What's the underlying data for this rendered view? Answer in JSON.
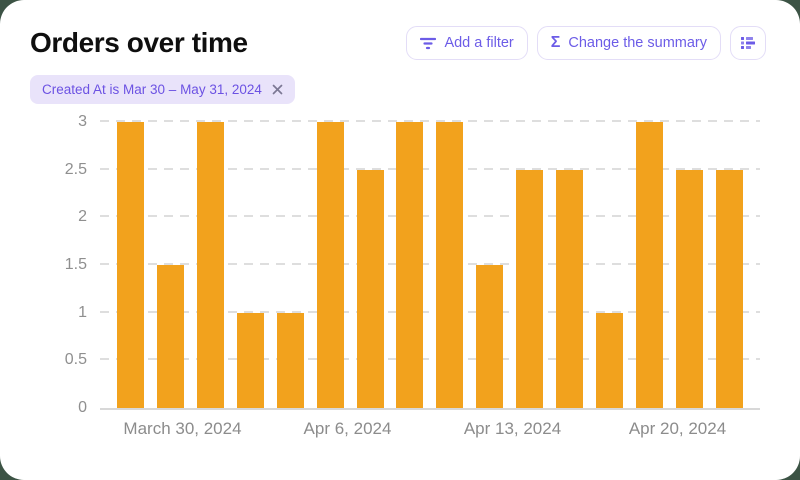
{
  "header": {
    "title": "Orders over time",
    "toolbar": {
      "add_filter_label": "Add a filter",
      "change_summary_label": "Change the summary",
      "sigma_glyph": "Σ",
      "icons": [
        "filter-lines-icon",
        "sigma-icon",
        "list-bars-icon"
      ]
    }
  },
  "filter_chip": {
    "label": "Created At is Mar 30 – May 31, 2024",
    "close_icon": "close-icon"
  },
  "colors": {
    "bar": "#F2A21D",
    "accent_purple": "#6C5CE7",
    "chip_bg": "#E9E3FA",
    "chip_text": "#6C52E3",
    "page_bg": "#3C5345",
    "grid": "#DEDEDE",
    "axis_text": "#8C8C8C"
  },
  "chart_data": {
    "type": "bar",
    "title": "Orders over time",
    "values": [
      3,
      1.5,
      3,
      1,
      1,
      3,
      2.5,
      3,
      3,
      1.5,
      2.5,
      2.5,
      1,
      3,
      2.5,
      2.5
    ],
    "x_tick_labels": [
      "March 30, 2024",
      "Apr 6, 2024",
      "Apr 13, 2024",
      "Apr 20, 2024"
    ],
    "y_ticks": [
      0,
      0.5,
      1,
      1.5,
      2,
      2.5,
      3
    ],
    "ylim": [
      0,
      3
    ],
    "xlabel": "",
    "ylabel": "",
    "grid": "horizontal-dashed",
    "legend": "none",
    "bar_color": "#F2A21D"
  }
}
